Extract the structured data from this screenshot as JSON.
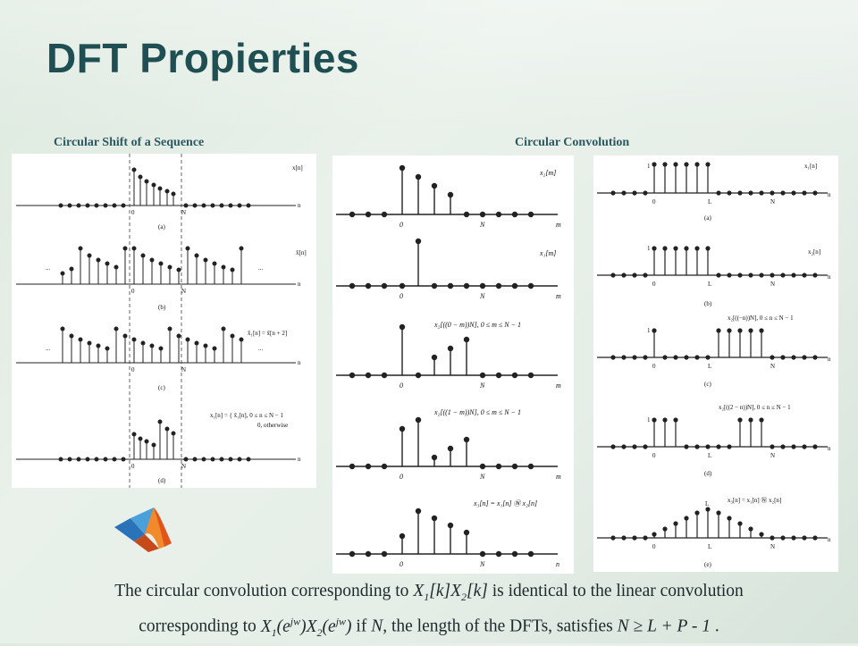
{
  "slide": {
    "title": "DFT Propierties",
    "caption_left": "Circular Shift of a Sequence",
    "caption_right": "Circular Convolution"
  },
  "shift_panel": {
    "row_labels": [
      "x[n]",
      "x̃[n]",
      "x̃₁[n] = x̃[n + 2]",
      "x₁[n] = { x̃₁[n], 0 ≤ n ≤ N − 1",
      "0, otherwise"
    ],
    "sub_labels": [
      "(a)",
      "(b)",
      "(c)",
      "(d)"
    ],
    "axis_n": "n",
    "zero": "0",
    "N": "N",
    "ellipsis": "..."
  },
  "conv_middle": {
    "row_labels": [
      "x₂[m]",
      "x₁[m]",
      "x₂[((0 − m))N], 0 ≤ m ≤ N − 1",
      "x₂[((1 − m))N], 0 ≤ m ≤ N − 1",
      "x₃[n] = x₁[n] Ⓝ x₂[n]"
    ],
    "axis_m": "m",
    "axis_n": "n",
    "zero": "0",
    "N": "N"
  },
  "conv_right": {
    "row_labels": [
      "x₁[n]",
      "x₂[n]",
      "x₂[((−n))N], 0 ≤ n ≤ N − 1",
      "x₂[((2 − n))N], 0 ≤ n ≤ N − 1",
      "x₃[n] = x₁[n] Ⓝ x₂[n]"
    ],
    "sub_labels": [
      "(a)",
      "(b)",
      "(c)",
      "(d)",
      "(e)"
    ],
    "one": "1",
    "L": "L",
    "N": "N",
    "zero": "0",
    "axis_n": "n"
  },
  "bottom": {
    "line1_a": "The circular convolution corresponding to ",
    "X": "X",
    "sub1": "1",
    "sub2": "2",
    "k": "[k]",
    "line1_b": " is identical to the linear convolution",
    "line2_a": "corresponding to ",
    "ejw": "(e",
    "jw": "jw",
    "close": ")",
    "line2_b": " if ",
    "Nvar": "N",
    "line2_c": ", the length of the DFTs, satisfies ",
    "inequality": "N ≥ L + P - 1",
    "period": " ."
  },
  "colors": {
    "title": "#1f4f52",
    "caption": "#2b5960",
    "text": "#1d2a2c"
  },
  "icons": [
    "matlab-logo-icon"
  ]
}
